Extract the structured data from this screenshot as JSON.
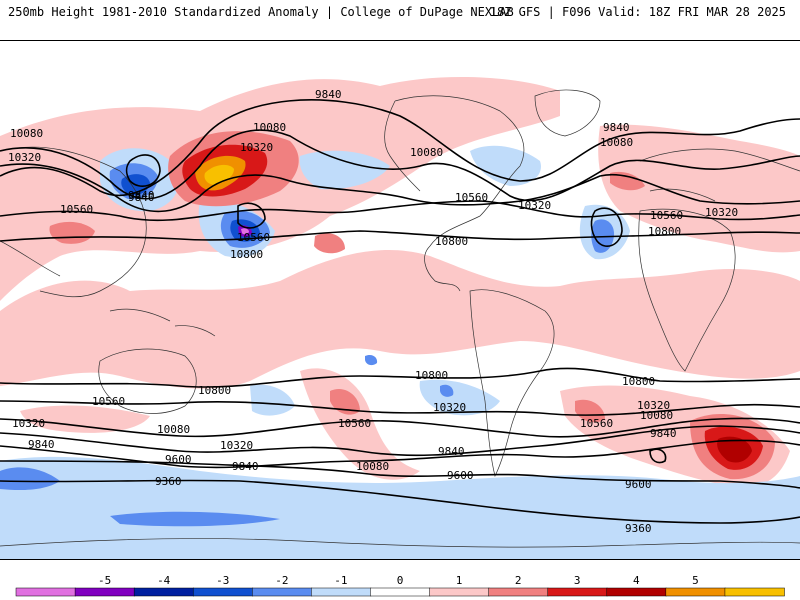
{
  "header": {
    "title": "250mb Height 1981-2010 Standardized Anomaly | College of DuPage NEXLAB",
    "run_info": "18Z GFS | F096 Valid: 18Z FRI MAR 28 2025"
  },
  "colorbar": {
    "ticks": [
      "-5",
      "-4",
      "-3",
      "-2",
      "-1",
      "0",
      "1",
      "2",
      "3",
      "4",
      "5"
    ],
    "colors": [
      "#e070e0",
      "#8000c0",
      "#0020a0",
      "#1050d0",
      "#5a8cf0",
      "#c0dcfa",
      "#ffffff",
      "#fcc8c8",
      "#f08080",
      "#d81818",
      "#b00000",
      "#f09000",
      "#f8c000"
    ]
  },
  "contour_labels": {
    "c9840_nw": "9840",
    "c9840_n": "9840",
    "c9840_ne": "9840",
    "c10080_a": "10080",
    "c10080_b": "10080",
    "c10080_c": "10080",
    "c10080_d": "10080",
    "c10320_a": "10320",
    "c10320_b": "10320",
    "c10320_c": "10320",
    "c10320_d": "10320",
    "c10560_a": "10560",
    "c10560_b": "10560",
    "c10560_c": "10560",
    "c10560_d": "10560",
    "c9840_low": "9840",
    "c10800_a": "10800",
    "c10800_b": "10800",
    "c10800_c": "10800",
    "s10800_a": "10800",
    "s10800_b": "10800",
    "s10800_c": "10800",
    "s10560_a": "10560",
    "s10560_b": "10560",
    "s10560_c": "10560",
    "s10320_a": "10320",
    "s10320_b": "10320",
    "s10320_c": "10320",
    "s10320_d": "10320",
    "s10080_a": "10080",
    "s10080_b": "10080",
    "s10080_c": "10080",
    "s9840_a": "9840",
    "s9840_b": "9840",
    "s9840_c": "9840",
    "s9840_d": "9840",
    "s9600_a": "9600",
    "s9600_b": "9600",
    "s9600_c": "9600",
    "s9360_a": "9360",
    "s9360_b": "9360"
  }
}
